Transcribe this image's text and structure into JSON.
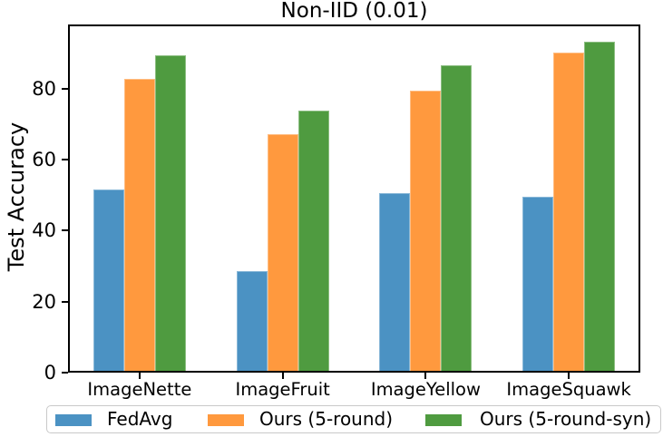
{
  "chart_data": {
    "type": "bar",
    "title": "Non-IID (0.01)",
    "xlabel": "",
    "ylabel": "Test Accuracy",
    "categories": [
      "ImageNette",
      "ImageFruit",
      "ImageYellow",
      "ImageSquawk"
    ],
    "series": [
      {
        "name": "FedAvg",
        "color": "#4b92c3",
        "values": [
          51.5,
          28.7,
          50.5,
          49.5
        ]
      },
      {
        "name": "Ours (5-round)",
        "color": "#ff993e",
        "values": [
          82.8,
          67.2,
          79.4,
          90.0
        ]
      },
      {
        "name": "Ours (5-round-syn)",
        "color": "#4f9b40",
        "values": [
          89.2,
          73.8,
          86.4,
          93.2
        ]
      }
    ],
    "yticks": [
      0,
      20,
      40,
      60,
      80
    ],
    "ylim": [
      0,
      98
    ],
    "grid": false,
    "frame": "full-box",
    "legend_position": "bottom",
    "colors": {
      "spine": "#000000",
      "legend_border": "#c9c9c9",
      "background": "#ffffff"
    }
  }
}
